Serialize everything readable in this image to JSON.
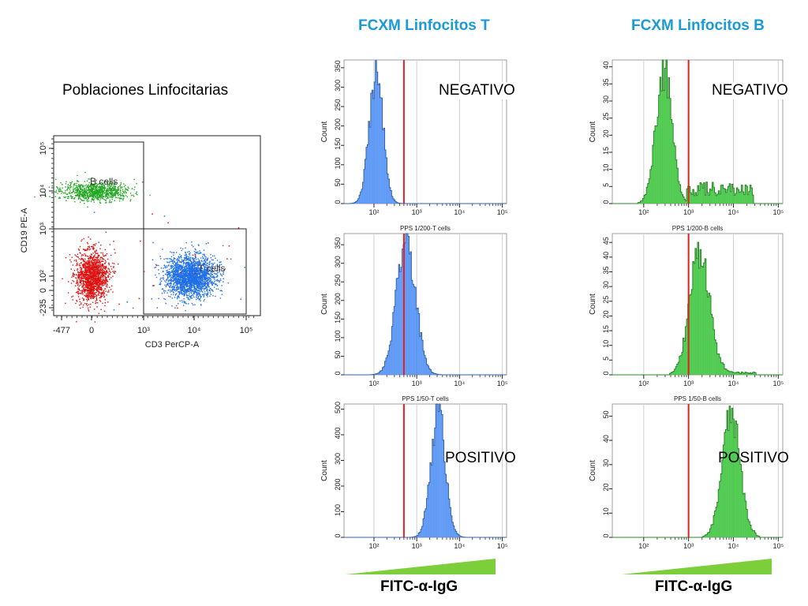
{
  "columns": [
    {
      "id": "T",
      "title": "FCXM Linfocitos T",
      "color": "#1a9bd7"
    },
    {
      "id": "B",
      "title": "FCXM Linfocitos B",
      "color": "#1a9bd7"
    }
  ],
  "left_title": "Poblaciones Linfocitarias",
  "result_labels": {
    "negative": "NEGATIVO",
    "positive": "POSITIVO"
  },
  "x_axis_label": "FITC-α-IgG",
  "colors": {
    "t_hist": "#4d8ef5",
    "b_hist": "#3cc43c",
    "cutoff": "#e0201c",
    "ramp": "#7ccf3a",
    "b_dots": "#22a822",
    "t_dots": "#1f6fe8",
    "neg_dots": "#e01010"
  },
  "chart_data": [
    {
      "type": "scatter",
      "name": "dotplot",
      "xlabel": "CD3 PerCP-A",
      "ylabel": "CD19 PE-A",
      "x_ticks": [
        "-477",
        "0",
        "10³",
        "10⁴",
        "10⁵"
      ],
      "y_ticks": [
        "-235",
        "0",
        "10²",
        "10³",
        "10⁴",
        "10⁵"
      ],
      "gates": [
        "B cells",
        "T cells"
      ],
      "populations": [
        {
          "name": "B cells",
          "color": "green",
          "x_center": 0.5,
          "y_center": 3.9,
          "count": 900
        },
        {
          "name": "negative",
          "color": "red",
          "x_center": 0.3,
          "y_center": 1.5,
          "count": 1500
        },
        {
          "name": "T cells",
          "color": "blue",
          "x_center": 3.7,
          "y_center": 1.5,
          "count": 2200
        }
      ]
    },
    {
      "type": "area",
      "name": "T-neg",
      "column": "T",
      "subtitle": "",
      "ylabel": "Count",
      "y_ticks": [
        "0",
        "50",
        "100",
        "150",
        "200",
        "250",
        "300",
        "350"
      ],
      "ymax": 370,
      "x_ticks": [
        "10²",
        "10³",
        "10⁴",
        "10⁵"
      ],
      "xlim": [
        1.3,
        5.1
      ],
      "cutoff": 2.7,
      "peak_log": 2.05,
      "spread": 0.16,
      "peak": 350,
      "tail": 0,
      "result": "NEGATIVO"
    },
    {
      "type": "area",
      "name": "T-mid",
      "column": "T",
      "subtitle": "PPS 1/200-T cells",
      "ylabel": "Count",
      "y_ticks": [
        "0",
        "50",
        "100",
        "150",
        "200",
        "250",
        "300",
        "350"
      ],
      "ymax": 380,
      "x_ticks": [
        "10²",
        "10³",
        "10⁴",
        "10⁵"
      ],
      "xlim": [
        1.3,
        5.1
      ],
      "cutoff": 2.7,
      "peak_log": 2.75,
      "spread": 0.22,
      "peak": 375,
      "tail": 0,
      "result": ""
    },
    {
      "type": "area",
      "name": "T-pos",
      "column": "T",
      "subtitle": "PPS 1/50-T cells",
      "ylabel": "Count",
      "y_ticks": [
        "0",
        "100",
        "200",
        "300",
        "400",
        "500"
      ],
      "ymax": 520,
      "x_ticks": [
        "10²",
        "10³",
        "10⁴",
        "10⁵"
      ],
      "xlim": [
        1.3,
        5.1
      ],
      "cutoff": 2.7,
      "peak_log": 3.5,
      "spread": 0.17,
      "peak": 505,
      "tail": 0,
      "result": "POSITIVO"
    },
    {
      "type": "area",
      "name": "B-neg",
      "column": "B",
      "subtitle": "",
      "ylabel": "Count",
      "y_ticks": [
        "0",
        "5",
        "10",
        "15",
        "20",
        "25",
        "30",
        "35",
        "40"
      ],
      "ymax": 42,
      "x_ticks": [
        "10²",
        "10³",
        "10⁴",
        "10⁵"
      ],
      "xlim": [
        1.3,
        5.1
      ],
      "cutoff": 3.0,
      "peak_log": 2.45,
      "spread": 0.18,
      "peak": 40,
      "tail": 6,
      "result": "NEGATIVO"
    },
    {
      "type": "area",
      "name": "B-mid",
      "column": "B",
      "subtitle": "PPS 1/200-B cells",
      "ylabel": "Count",
      "y_ticks": [
        "0",
        "5",
        "10",
        "15",
        "20",
        "25",
        "30",
        "35",
        "40",
        "45"
      ],
      "ymax": 48,
      "x_ticks": [
        "10²",
        "10³",
        "10⁴",
        "10⁵"
      ],
      "xlim": [
        1.3,
        5.1
      ],
      "cutoff": 3.0,
      "peak_log": 3.25,
      "spread": 0.22,
      "peak": 44,
      "tail": 1,
      "result": ""
    },
    {
      "type": "area",
      "name": "B-pos",
      "column": "B",
      "subtitle": "PPS 1/50-B cells",
      "ylabel": "Count",
      "y_ticks": [
        "0",
        "10",
        "20",
        "30",
        "40",
        "50"
      ],
      "ymax": 55,
      "x_ticks": [
        "10²",
        "10³",
        "10⁴",
        "10⁵"
      ],
      "xlim": [
        1.3,
        5.1
      ],
      "cutoff": 3.0,
      "peak_log": 3.95,
      "spread": 0.2,
      "peak": 52,
      "tail": 1,
      "result": "POSITIVO"
    }
  ]
}
